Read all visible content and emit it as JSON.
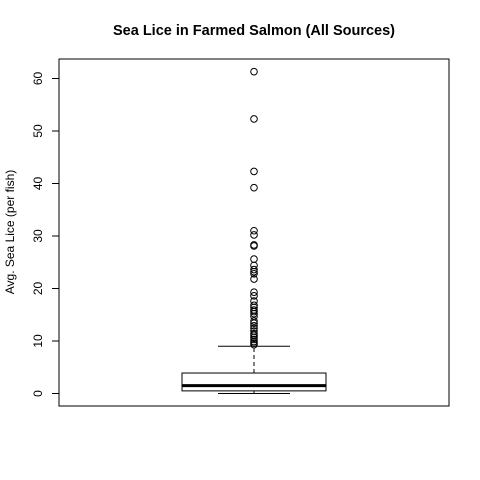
{
  "chart_data": {
    "type": "boxplot",
    "title": "Sea Lice in Farmed Salmon (All Sources)",
    "xlabel": "",
    "ylabel": "Avg. Sea Lice (per fish)",
    "ylim": [
      -2.5,
      63.8
    ],
    "yticks": [
      0,
      10,
      20,
      30,
      40,
      50,
      60
    ],
    "grid": false,
    "legend": "none",
    "box": {
      "min": 0.0,
      "q1": 0.5,
      "median": 1.5,
      "q3": 3.9,
      "upper_whisker": 9.0
    },
    "outliers": [
      61.3,
      52.3,
      42.3,
      39.2,
      31.0,
      30.2,
      28.3,
      28.1,
      25.6,
      24.4,
      23.6,
      23.2,
      22.8,
      21.8,
      19.3,
      18.6,
      17.6,
      16.8,
      16.4,
      15.9,
      15.6,
      15.2,
      14.7,
      13.8,
      13.4,
      12.9,
      12.4,
      11.9,
      11.4,
      11.1,
      10.7,
      10.3,
      9.9,
      9.6,
      9.3
    ],
    "colors": {
      "stroke": "#000000",
      "background": "#ffffff"
    }
  }
}
